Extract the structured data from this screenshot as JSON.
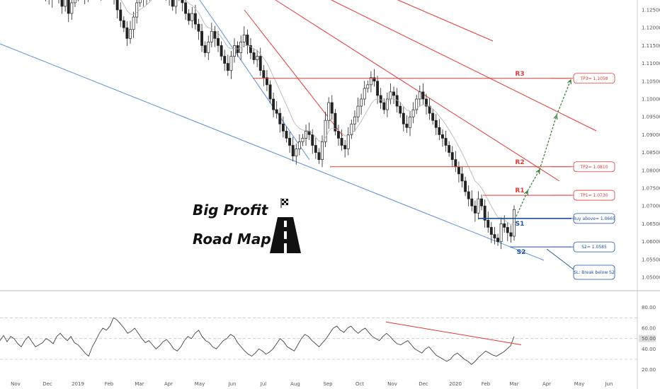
{
  "chart_data": [
    {
      "type": "candlestick",
      "ylim": [
        1.045,
        1.13
      ],
      "y_ticks": [
        "1.12500",
        "1.12000",
        "1.11500",
        "1.11000",
        "1.10500",
        "1.10000",
        "1.09500",
        "1.09000",
        "1.08500",
        "1.08000",
        "1.07500",
        "1.07000",
        "1.06500",
        "1.06000",
        "1.05500",
        "1.05000"
      ],
      "x_ticks": [
        "Nov",
        "Dec",
        "2019",
        "Feb",
        "Mar",
        "Apr",
        "May",
        "Jun",
        "Jul",
        "Aug",
        "Sep",
        "Oct",
        "Nov",
        "Dec",
        "2020",
        "Feb",
        "Mar",
        "Apr",
        "May",
        "Jun"
      ],
      "levels": [
        {
          "name": "R3",
          "value": 1.1058,
          "color": "#e53935"
        },
        {
          "name": "R2",
          "value": 1.081,
          "color": "#e53935"
        },
        {
          "name": "R1",
          "value": 1.073,
          "color": "#e53935"
        },
        {
          "name": "S1",
          "value": 1.0665,
          "color": "#1e4fa0"
        },
        {
          "name": "S2",
          "value": 1.0585,
          "color": "#1e4fa0"
        }
      ],
      "annotations": [
        {
          "text": "TP3= 1.1058",
          "color": "#e53935"
        },
        {
          "text": "TP2= 1.0810",
          "color": "#e53935"
        },
        {
          "text": "TP1= 1.0730",
          "color": "#e53935"
        },
        {
          "text": "Buy above= 1.0665",
          "color": "#1e4fa0"
        },
        {
          "text": "S2= 1.0585",
          "color": "#1e4fa0"
        },
        {
          "text": "SL: Break below S2",
          "color": "#1e4fa0"
        }
      ],
      "ohlc_closes": [
        1.132,
        1.1295,
        1.128,
        1.1305,
        1.131,
        1.128,
        1.126,
        1.1285,
        1.124,
        1.127,
        1.1295,
        1.13,
        1.13,
        1.129,
        1.131,
        1.13,
        1.131,
        1.132,
        1.13,
        1.131,
        1.133,
        1.13,
        1.128,
        1.125,
        1.122,
        1.12,
        1.117,
        1.1195,
        1.123,
        1.127,
        1.129,
        1.128,
        1.13,
        1.131,
        1.132,
        1.132,
        1.131,
        1.13,
        1.131,
        1.128,
        1.126,
        1.129,
        1.13,
        1.127,
        1.124,
        1.122,
        1.124,
        1.121,
        1.119,
        1.115,
        1.113,
        1.116,
        1.119,
        1.117,
        1.115,
        1.112,
        1.11,
        1.108,
        1.112,
        1.115,
        1.113,
        1.116,
        1.118,
        1.115,
        1.113,
        1.111,
        1.112,
        1.108,
        1.106,
        1.104,
        1.1,
        1.097,
        1.096,
        1.093,
        1.091,
        1.089,
        1.087,
        1.084,
        1.086,
        1.088,
        1.089,
        1.091,
        1.09,
        1.087,
        1.085,
        1.083,
        1.088,
        1.094,
        1.099,
        1.096,
        1.091,
        1.089,
        1.087,
        1.086,
        1.09,
        1.093,
        1.095,
        1.098,
        1.1,
        1.103,
        1.104,
        1.106,
        1.105,
        1.101,
        1.099,
        1.097,
        1.1,
        1.102,
        1.101,
        1.098,
        1.096,
        1.093,
        1.092,
        1.095,
        1.097,
        1.1,
        1.102,
        1.1,
        1.098,
        1.096,
        1.094,
        1.092,
        1.09,
        1.089,
        1.087,
        1.085,
        1.083,
        1.081,
        1.079,
        1.077,
        1.074,
        1.072,
        1.07,
        1.068,
        1.072,
        1.07,
        1.066,
        1.064,
        1.062,
        1.061,
        1.06,
        1.065,
        1.064,
        1.0625,
        1.0615,
        1.069
      ],
      "series": [
        {
          "name": "",
          "type": "candles"
        },
        {
          "name": "",
          "type": "oscillator",
          "ylim": [
            15,
            90
          ],
          "y_ticks": [
            "80.00",
            "60.00",
            "40.00",
            "20.00"
          ],
          "current": "50.00",
          "values": [
            48,
            53,
            47,
            52,
            50,
            45,
            42,
            48,
            52,
            47,
            42,
            44,
            46,
            50,
            48,
            45,
            52,
            55,
            51,
            48,
            52,
            46,
            44,
            40,
            36,
            33,
            42,
            48,
            55,
            60,
            58,
            62,
            70,
            68,
            64,
            60,
            55,
            57,
            60,
            55,
            50,
            46,
            48,
            44,
            40,
            43,
            47,
            49,
            45,
            40,
            38,
            42,
            48,
            52,
            50,
            55,
            58,
            52,
            48,
            46,
            42,
            40,
            44,
            48,
            50,
            54,
            52,
            46,
            42,
            38,
            35,
            33,
            36,
            40,
            38,
            35,
            37,
            40,
            45,
            50,
            47,
            42,
            40,
            38,
            44,
            50,
            54,
            52,
            48,
            45,
            42,
            46,
            50,
            55,
            60,
            62,
            58,
            56,
            60,
            62,
            58,
            55,
            58,
            60,
            56,
            52,
            50,
            48,
            52,
            55,
            52,
            48,
            45,
            44,
            46,
            48,
            44,
            40,
            38,
            36,
            40,
            42,
            38,
            34,
            32,
            30,
            28,
            30,
            34,
            36,
            33,
            30,
            28,
            25,
            28,
            32,
            35,
            38,
            36,
            34,
            33,
            35,
            37,
            40,
            43,
            52
          ]
        }
      ]
    }
  ],
  "title_block": {
    "line1": "Big Profit",
    "line2": "Road Map"
  }
}
